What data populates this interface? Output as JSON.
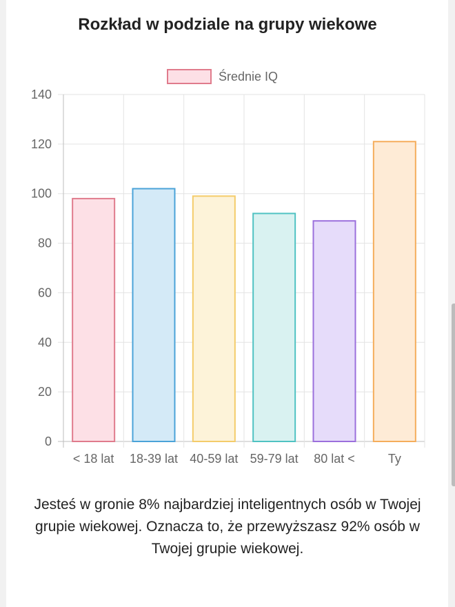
{
  "chart_data": {
    "type": "bar",
    "title": "Rozkład w podziale na grupy wiekowe",
    "legend": {
      "label": "Średnie IQ",
      "placement": "top",
      "color": "#e07b8c",
      "fill": "#fde0e6"
    },
    "categories": [
      "< 18 lat",
      "18-39 lat",
      "40-59 lat",
      "59-79 lat",
      "80 lat <",
      "Ty"
    ],
    "series": [
      {
        "name": "Średnie IQ",
        "values": [
          98,
          102,
          99,
          92,
          89,
          121
        ]
      }
    ],
    "bar_colors": [
      {
        "stroke": "#e07b8c",
        "fill": "#fde0e6"
      },
      {
        "stroke": "#4aa3d8",
        "fill": "#d4eaf7"
      },
      {
        "stroke": "#f4cc6a",
        "fill": "#fdf3d9"
      },
      {
        "stroke": "#4fc2c2",
        "fill": "#d9f2f1"
      },
      {
        "stroke": "#9b6fdc",
        "fill": "#e6dcfa"
      },
      {
        "stroke": "#f5ad5b",
        "fill": "#feebd6"
      }
    ],
    "ylim": [
      0,
      140
    ],
    "yticks": [
      0,
      20,
      40,
      60,
      80,
      100,
      120,
      140
    ],
    "xlabel": "",
    "ylabel": "",
    "grid": true
  },
  "caption": "Jesteś w gronie 8% najbardziej inteligentnych osób w Twojej grupie wiekowej. Oznacza to, że przewyższasz 92% osób w Twojej grupie wiekowej."
}
